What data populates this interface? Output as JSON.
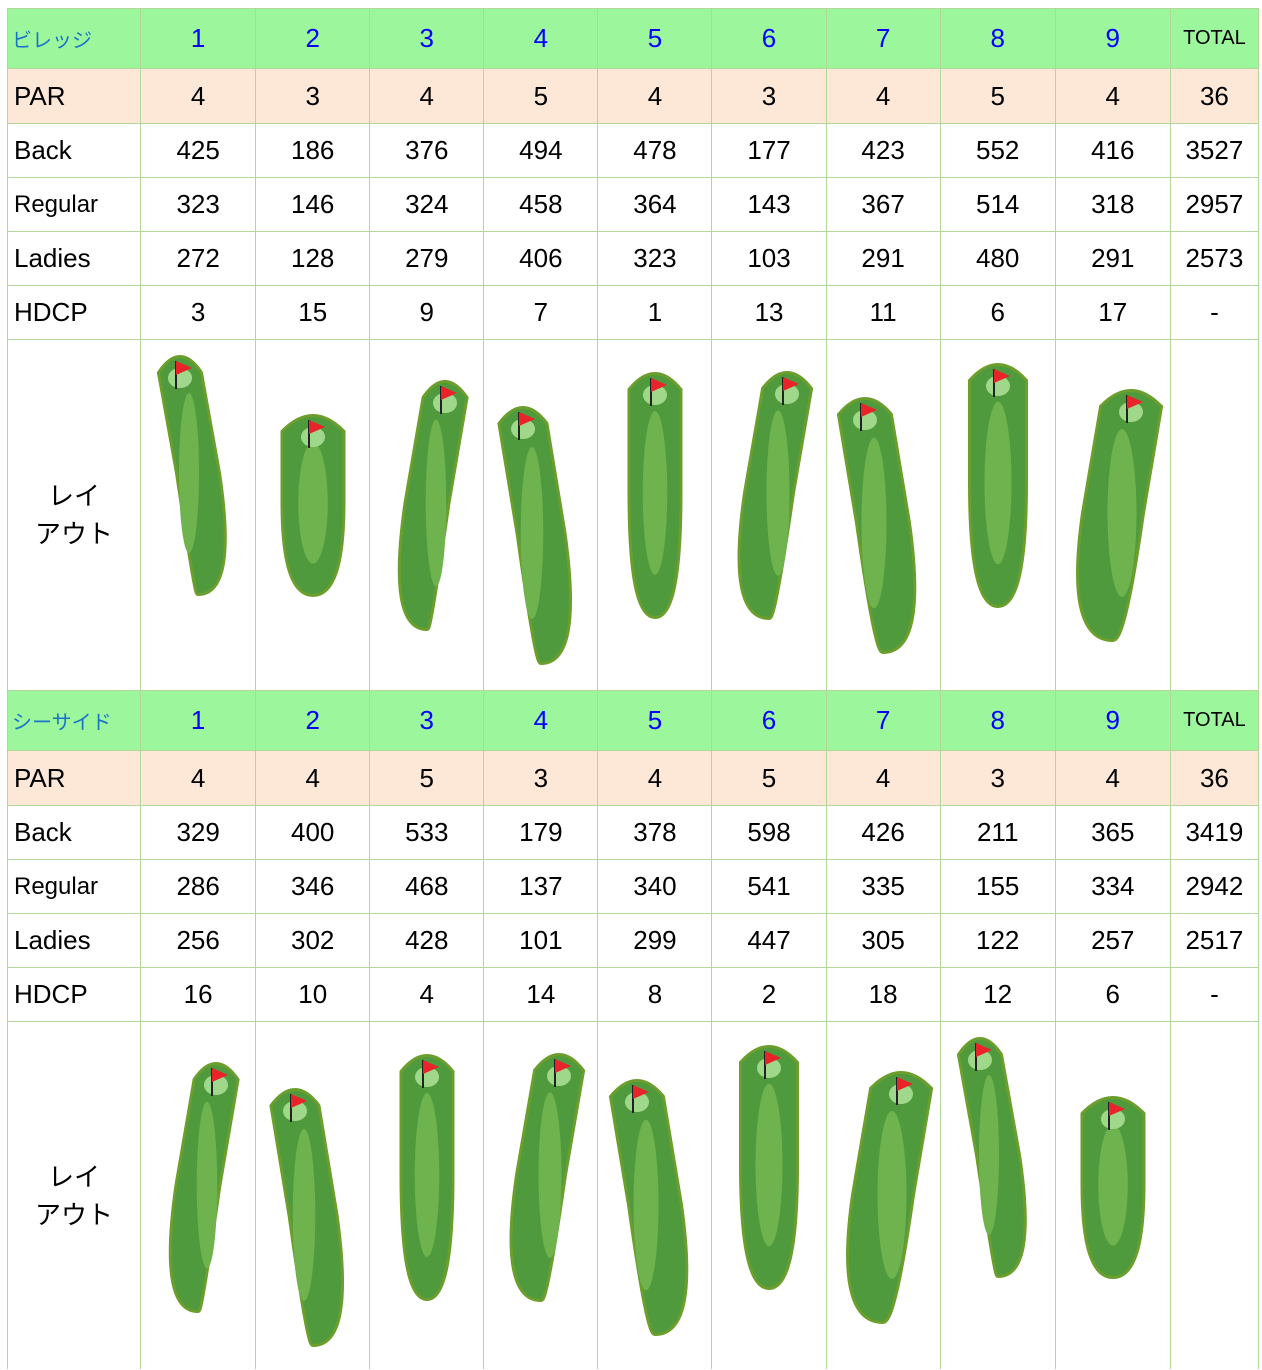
{
  "tables": [
    {
      "name": "ビレッジ",
      "holes": [
        1,
        2,
        3,
        4,
        5,
        6,
        7,
        8,
        9
      ],
      "total_label": "TOTAL",
      "rows": [
        {
          "label": "PAR",
          "values": [
            4,
            3,
            4,
            5,
            4,
            3,
            4,
            5,
            4
          ],
          "total": 36
        },
        {
          "label": "Back",
          "values": [
            425,
            186,
            376,
            494,
            478,
            177,
            423,
            552,
            416
          ],
          "total": 3527
        },
        {
          "label": "Regular",
          "values": [
            323,
            146,
            324,
            458,
            364,
            143,
            367,
            514,
            318
          ],
          "total": 2957
        },
        {
          "label": "Ladies",
          "values": [
            272,
            128,
            279,
            406,
            323,
            103,
            291,
            480,
            291
          ],
          "total": 2573
        },
        {
          "label": "HDCP",
          "values": [
            3,
            15,
            9,
            7,
            1,
            13,
            11,
            6,
            17
          ],
          "total": "-"
        }
      ],
      "layout_label": "レイ\nアウト"
    },
    {
      "name": "シーサイド",
      "holes": [
        1,
        2,
        3,
        4,
        5,
        6,
        7,
        8,
        9
      ],
      "total_label": "TOTAL",
      "rows": [
        {
          "label": "PAR",
          "values": [
            4,
            4,
            5,
            3,
            4,
            5,
            4,
            3,
            4
          ],
          "total": 36
        },
        {
          "label": "Back",
          "values": [
            329,
            400,
            533,
            179,
            378,
            598,
            426,
            211,
            365
          ],
          "total": 3419
        },
        {
          "label": "Regular",
          "values": [
            286,
            346,
            468,
            137,
            340,
            541,
            335,
            155,
            334
          ],
          "total": 2942
        },
        {
          "label": "Ladies",
          "values": [
            256,
            302,
            428,
            101,
            299,
            447,
            305,
            122,
            257
          ],
          "total": 2517
        },
        {
          "label": "HDCP",
          "values": [
            16,
            10,
            4,
            14,
            8,
            2,
            18,
            12,
            6
          ],
          "total": "-"
        }
      ],
      "layout_label": "レイ\nアウト"
    }
  ]
}
